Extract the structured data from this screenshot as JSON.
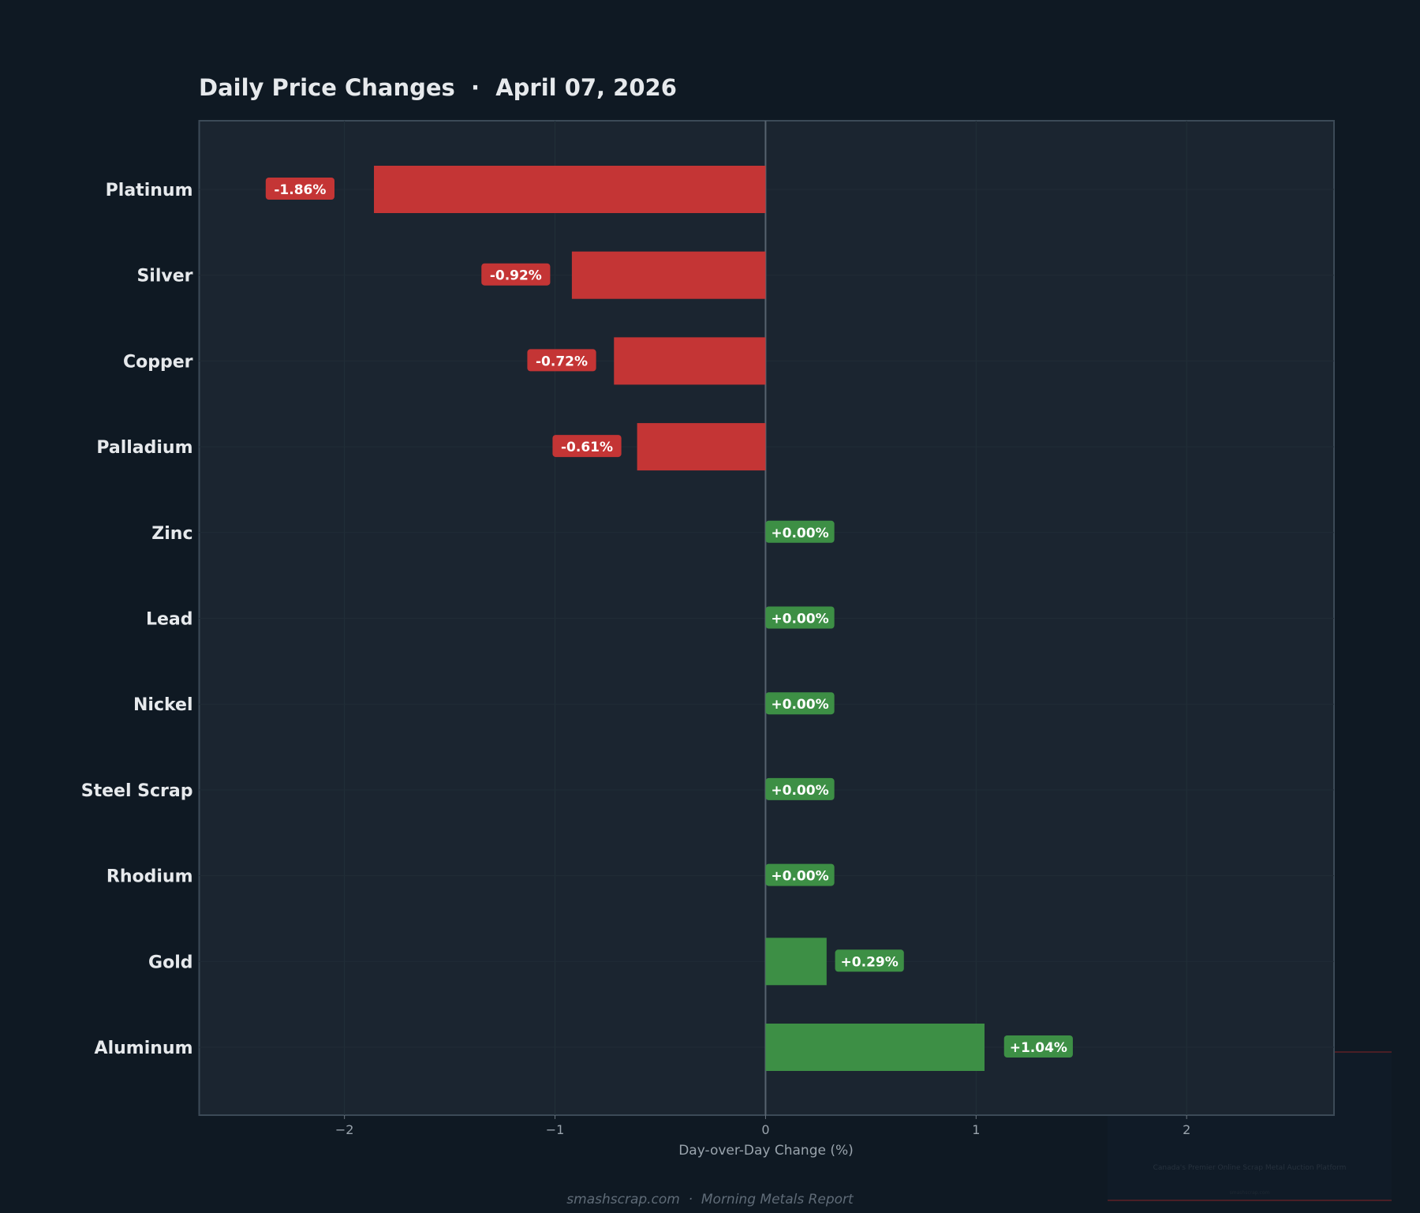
{
  "chart_data": {
    "type": "bar",
    "orientation": "horizontal",
    "title": "Daily Price Changes  ·  April 07, 2026",
    "xlabel": "Day-over-Day Change (%)",
    "ylabel": "",
    "xlim": [
      -2.69,
      2.7
    ],
    "xticks": [
      -2,
      -1,
      0,
      1,
      2
    ],
    "xtick_labels": [
      "−2",
      "−1",
      "0",
      "1",
      "2"
    ],
    "grid": true,
    "categories": [
      "Platinum",
      "Silver",
      "Copper",
      "Palladium",
      "Zinc",
      "Lead",
      "Nickel",
      "Steel Scrap",
      "Rhodium",
      "Gold",
      "Aluminum"
    ],
    "values": [
      -1.86,
      -0.92,
      -0.72,
      -0.61,
      0.0,
      0.0,
      0.0,
      0.0,
      0.0,
      0.29,
      1.04
    ],
    "data_labels": [
      "-1.86%",
      "-0.92%",
      "-0.72%",
      "-0.61%",
      "+0.00%",
      "+0.00%",
      "+0.00%",
      "+0.00%",
      "+0.00%",
      "+0.29%",
      "+1.04%"
    ],
    "colors": {
      "negative": "#c43535",
      "positive": "#3d8f45",
      "background": "#0f1923",
      "plot_background": "#1b2530"
    }
  },
  "watermark": {
    "tagline": "Canada's Premier Online Scrap Metal Auction Platform",
    "site": "smashscrap.com"
  },
  "footer": "smashscrap.com  ·  Morning Metals Report"
}
